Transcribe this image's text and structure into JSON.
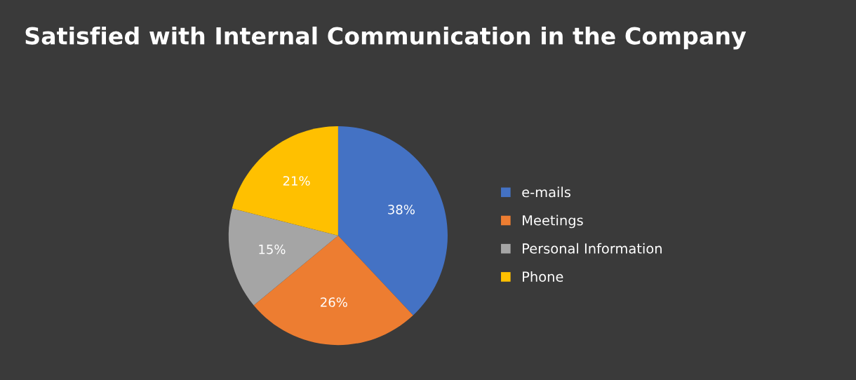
{
  "chart_data": {
    "type": "pie",
    "title": "Satisfied with Internal Communication in the Company",
    "categories": [
      "e-mails",
      "Meetings",
      "Personal Information",
      "Phone"
    ],
    "values": [
      38,
      26,
      15,
      21
    ],
    "colors": [
      "#4472c4",
      "#ed7d31",
      "#a5a5a5",
      "#ffc000"
    ],
    "value_labels": [
      "38%",
      "26%",
      "15%",
      "21%"
    ],
    "legend": "right"
  }
}
